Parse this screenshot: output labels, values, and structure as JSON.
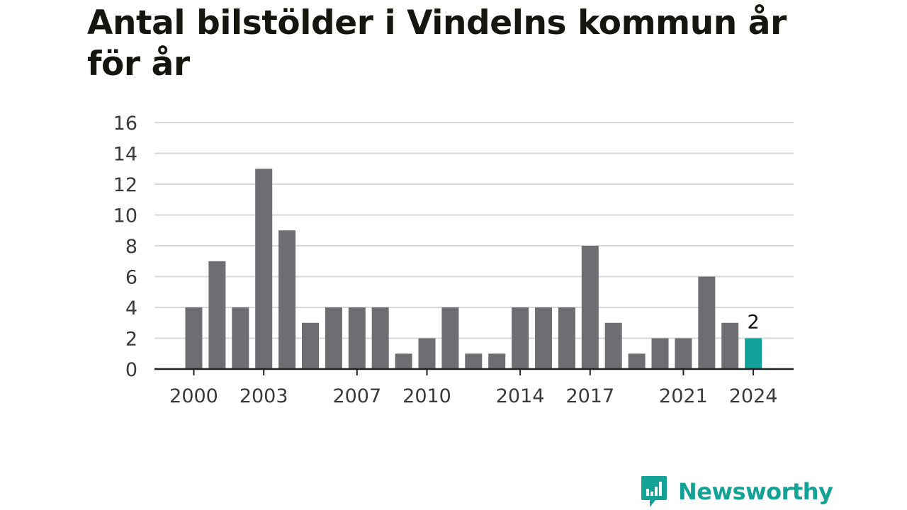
{
  "title": "Antal bilstölder i Vindelns kommun år för år",
  "brand": {
    "name": "Newsworthy",
    "color": "#15a296"
  },
  "colors": {
    "bar": "#6e6d72",
    "highlight": "#13a39a",
    "grid": "#d9d9d9",
    "axis": "#222222"
  },
  "chart_data": {
    "type": "bar",
    "title": "Antal bilstölder i Vindelns kommun år för år",
    "xlabel": "",
    "ylabel": "",
    "ylim": [
      0,
      16
    ],
    "yticks": [
      0,
      2,
      4,
      6,
      8,
      10,
      12,
      14,
      16
    ],
    "categories": [
      "2000",
      "2001",
      "2002",
      "2003",
      "2004",
      "2005",
      "2006",
      "2007",
      "2008",
      "2009",
      "2010",
      "2011",
      "2012",
      "2013",
      "2014",
      "2015",
      "2016",
      "2017",
      "2018",
      "2019",
      "2020",
      "2021",
      "2022",
      "2023",
      "2024"
    ],
    "values": [
      4,
      7,
      4,
      13,
      9,
      3,
      4,
      4,
      4,
      1,
      2,
      4,
      1,
      1,
      4,
      4,
      4,
      8,
      3,
      1,
      2,
      2,
      6,
      3,
      2
    ],
    "xtick_labels": [
      "2000",
      "2003",
      "2007",
      "2010",
      "2014",
      "2017",
      "2021",
      "2024"
    ],
    "highlight": {
      "category": "2024",
      "label": "2"
    },
    "grid": true,
    "legend": "none"
  }
}
